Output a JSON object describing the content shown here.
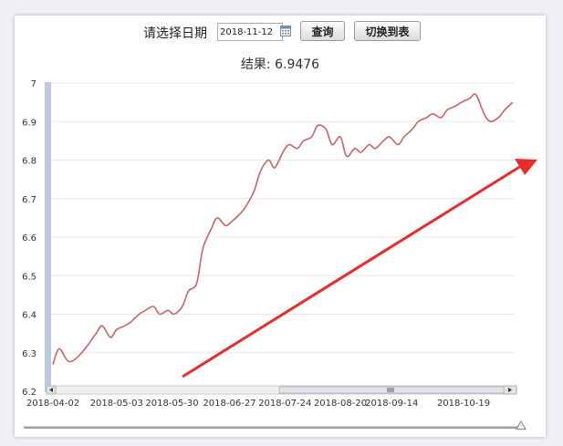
{
  "toolbar": {
    "date_label": "请选择日期",
    "date_value": "2018-11-12",
    "query_label": "查询",
    "switch_label": "切换到表"
  },
  "result": {
    "text": "结果: 6.9476"
  },
  "colors": {
    "line": "#c86464",
    "arrow": "#e82c2c",
    "grid": "#e8e8e8",
    "navigator": "#bccbdc"
  },
  "chart_data": {
    "type": "line",
    "title": "",
    "xlabel": "",
    "ylabel": "",
    "ylim": [
      6.2,
      7.0
    ],
    "yticks": [
      "7",
      "6.9",
      "6.8",
      "6.7",
      "6.6",
      "6.5",
      "6.4",
      "6.3",
      "6.2"
    ],
    "xticks": [
      "2018-04-02",
      "2018-05-03",
      "2018-05-30",
      "2018-06-27",
      "2018-07-24",
      "2018-08-20",
      "2018-09-14",
      "2018-10-19"
    ],
    "grid": true,
    "series": [
      {
        "name": "",
        "x": [
          "2018-04-02",
          "2018-04-05",
          "2018-04-09",
          "2018-04-12",
          "2018-04-16",
          "2018-04-19",
          "2018-04-23",
          "2018-04-26",
          "2018-04-30",
          "2018-05-03",
          "2018-05-07",
          "2018-05-10",
          "2018-05-14",
          "2018-05-17",
          "2018-05-21",
          "2018-05-24",
          "2018-05-28",
          "2018-05-31",
          "2018-06-04",
          "2018-06-07",
          "2018-06-11",
          "2018-06-14",
          "2018-06-18",
          "2018-06-21",
          "2018-06-25",
          "2018-06-28",
          "2018-07-02",
          "2018-07-05",
          "2018-07-09",
          "2018-07-12",
          "2018-07-16",
          "2018-07-19",
          "2018-07-23",
          "2018-07-26",
          "2018-07-30",
          "2018-08-02",
          "2018-08-06",
          "2018-08-09",
          "2018-08-13",
          "2018-08-16",
          "2018-08-20",
          "2018-08-23",
          "2018-08-27",
          "2018-08-30",
          "2018-09-03",
          "2018-09-06",
          "2018-09-10",
          "2018-09-13",
          "2018-09-17",
          "2018-09-20",
          "2018-09-24",
          "2018-09-27",
          "2018-10-01",
          "2018-10-04",
          "2018-10-08",
          "2018-10-11",
          "2018-10-15",
          "2018-10-18",
          "2018-10-22",
          "2018-10-25",
          "2018-10-29",
          "2018-11-01",
          "2018-11-05",
          "2018-11-08",
          "2018-11-12"
        ],
        "values": [
          6.27,
          6.31,
          6.28,
          6.28,
          6.3,
          6.32,
          6.35,
          6.37,
          6.34,
          6.36,
          6.37,
          6.38,
          6.4,
          6.41,
          6.42,
          6.4,
          6.41,
          6.4,
          6.42,
          6.46,
          6.48,
          6.57,
          6.62,
          6.65,
          6.63,
          6.64,
          6.66,
          6.68,
          6.72,
          6.77,
          6.8,
          6.78,
          6.82,
          6.84,
          6.83,
          6.85,
          6.86,
          6.89,
          6.88,
          6.84,
          6.86,
          6.81,
          6.83,
          6.82,
          6.84,
          6.83,
          6.85,
          6.86,
          6.84,
          6.86,
          6.88,
          6.9,
          6.91,
          6.92,
          6.91,
          6.93,
          6.94,
          6.95,
          6.96,
          6.97,
          6.92,
          6.9,
          6.91,
          6.93,
          6.95
        ]
      }
    ]
  }
}
